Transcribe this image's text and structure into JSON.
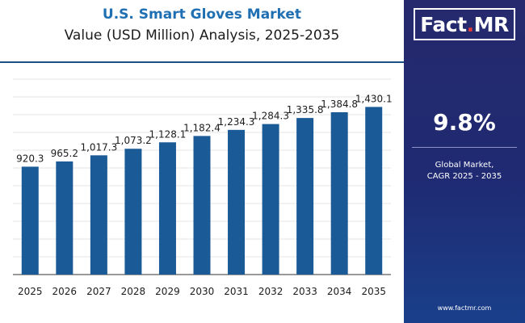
{
  "colors": {
    "bar": "#1a5a96",
    "title": "#1f6fb3",
    "panel": "#23296e",
    "accent_red": "#e63b3b"
  },
  "panel": {
    "logo_part1": "Fact",
    "logo_dot": ".",
    "logo_part2": "MR",
    "cagr_value": "9.8%",
    "cagr_label_line1": "Global Market,",
    "cagr_label_line2": "CAGR 2025 - 2035",
    "website": "www.factmr.com"
  },
  "chart_data": {
    "type": "bar",
    "title": "U.S. Smart Gloves Market",
    "subtitle": "Value (USD Million) Analysis, 2025-2035",
    "categories": [
      "2025",
      "2026",
      "2027",
      "2028",
      "2029",
      "2030",
      "2031",
      "2032",
      "2033",
      "2034",
      "2035"
    ],
    "values": [
      920.3,
      965.2,
      1017.3,
      1073.2,
      1128.1,
      1182.4,
      1234.3,
      1284.3,
      1335.8,
      1384.8,
      1430.1
    ],
    "value_labels": [
      "920.3",
      "965.2",
      "1,017.3",
      "1,073.2",
      "1,128.1",
      "1,182.4",
      "1,234.3",
      "1,284.3",
      "1,335.8",
      "1,384.8",
      "1,430.1"
    ],
    "xlabel": "",
    "ylabel": "",
    "ylim": [
      0,
      1750
    ],
    "grid": true,
    "legend": "none"
  }
}
